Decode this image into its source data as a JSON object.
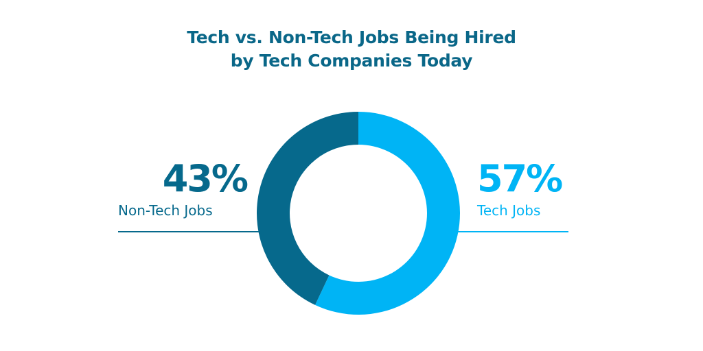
{
  "title": {
    "line1": "Tech vs. Non-Tech Jobs Being Hired",
    "line2": "by Tech Companies Today"
  },
  "colors": {
    "title": "#0a6788",
    "non_tech": "#06698c",
    "tech": "#00b4f5"
  },
  "chart_data": {
    "type": "pie",
    "title": "Tech vs. Non-Tech Jobs Being Hired by Tech Companies Today",
    "labels": [
      "Tech Jobs",
      "Non-Tech Jobs"
    ],
    "values": [
      57,
      43
    ],
    "value_labels": [
      "57%",
      "43%"
    ],
    "colors": [
      "#00b4f5",
      "#06698c"
    ],
    "donut": true,
    "direction": "clockwise from top"
  }
}
